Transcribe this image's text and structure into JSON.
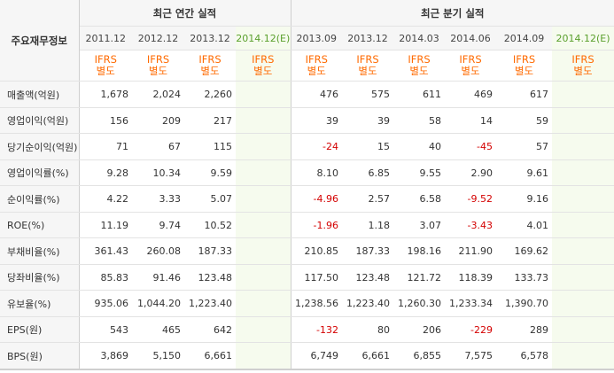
{
  "header": {
    "corner": "주요재무정보",
    "annual_title": "최근 연간 실적",
    "quarter_title": "최근 분기 실적",
    "ifrs_line1": "IFRS",
    "ifrs_line2": "별도",
    "annual_periods": [
      "2011.12",
      "2012.12",
      "2013.12",
      "2014.12(E)"
    ],
    "quarter_periods": [
      "2013.09",
      "2013.12",
      "2014.03",
      "2014.06",
      "2014.09",
      "2014.12(E)"
    ]
  },
  "rows": [
    {
      "label": "매출액(억원)",
      "annual": [
        "1,678",
        "2,024",
        "2,260",
        ""
      ],
      "quarter": [
        "476",
        "575",
        "611",
        "469",
        "617",
        ""
      ]
    },
    {
      "label": "영업이익(억원)",
      "annual": [
        "156",
        "209",
        "217",
        ""
      ],
      "quarter": [
        "39",
        "39",
        "58",
        "14",
        "59",
        ""
      ]
    },
    {
      "label": "당기순이익(억원)",
      "annual": [
        "71",
        "67",
        "115",
        ""
      ],
      "quarter": [
        "-24",
        "15",
        "40",
        "-45",
        "57",
        ""
      ]
    },
    {
      "label": "영업이익률(%)",
      "annual": [
        "9.28",
        "10.34",
        "9.59",
        ""
      ],
      "quarter": [
        "8.10",
        "6.85",
        "9.55",
        "2.90",
        "9.61",
        ""
      ]
    },
    {
      "label": "순이익률(%)",
      "annual": [
        "4.22",
        "3.33",
        "5.07",
        ""
      ],
      "quarter": [
        "-4.96",
        "2.57",
        "6.58",
        "-9.52",
        "9.16",
        ""
      ]
    },
    {
      "label": "ROE(%)",
      "annual": [
        "11.19",
        "9.74",
        "10.52",
        ""
      ],
      "quarter": [
        "-1.96",
        "1.18",
        "3.07",
        "-3.43",
        "4.01",
        ""
      ]
    },
    {
      "label": "부채비율(%)",
      "annual": [
        "361.43",
        "260.08",
        "187.33",
        ""
      ],
      "quarter": [
        "210.85",
        "187.33",
        "198.16",
        "211.90",
        "169.62",
        ""
      ]
    },
    {
      "label": "당좌비율(%)",
      "annual": [
        "85.83",
        "91.46",
        "123.48",
        ""
      ],
      "quarter": [
        "117.50",
        "123.48",
        "121.72",
        "118.39",
        "133.73",
        ""
      ]
    },
    {
      "label": "유보율(%)",
      "annual": [
        "935.06",
        "1,044.20",
        "1,223.40",
        ""
      ],
      "quarter": [
        "1,238.56",
        "1,223.40",
        "1,260.30",
        "1,233.34",
        "1,390.70",
        ""
      ]
    },
    {
      "label": "EPS(원)",
      "annual": [
        "543",
        "465",
        "642",
        ""
      ],
      "quarter": [
        "-132",
        "80",
        "206",
        "-229",
        "289",
        ""
      ]
    },
    {
      "label": "BPS(원)",
      "annual": [
        "3,869",
        "5,150",
        "6,661",
        ""
      ],
      "quarter": [
        "6,749",
        "6,661",
        "6,855",
        "7,575",
        "6,578",
        ""
      ]
    }
  ],
  "colors": {
    "negative": "#d40000",
    "ifrs": "#ff6a00",
    "estimate_header": "#5aa02c",
    "estimate_bg": "#f6fbee"
  }
}
